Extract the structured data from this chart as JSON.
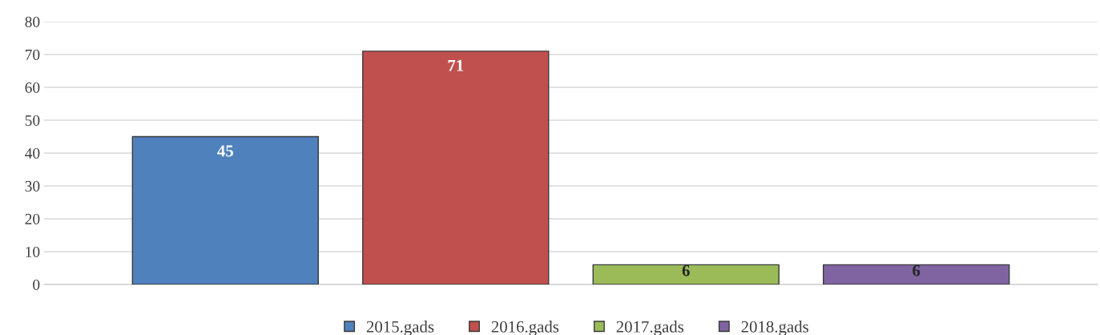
{
  "chart_data": {
    "type": "bar",
    "categories": [
      null
    ],
    "series": [
      {
        "name": "2015.gads",
        "color": "#4f81bd",
        "values": [
          45
        ]
      },
      {
        "name": "2016.gads",
        "color": "#c0504d",
        "values": [
          71
        ]
      },
      {
        "name": "2017.gads",
        "color": "#9bbb59",
        "values": [
          6
        ]
      },
      {
        "name": "2018.gads",
        "color": "#8064a2",
        "values": [
          6
        ]
      }
    ],
    "ylim": [
      0,
      80
    ],
    "yticks": [
      0,
      10,
      20,
      30,
      40,
      50,
      60,
      70,
      80
    ],
    "grid": "y",
    "legend": "bottom",
    "data_labels": true
  }
}
